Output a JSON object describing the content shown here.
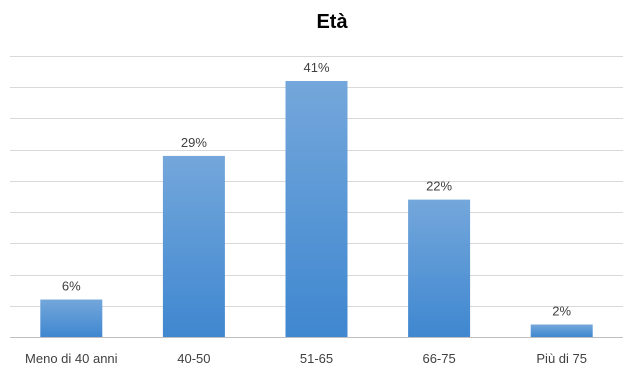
{
  "chart_data": {
    "type": "bar",
    "title": "Età",
    "categories": [
      "Meno di 40 anni",
      "40-50",
      "51-65",
      "66-75",
      "Più di 75"
    ],
    "values": [
      6,
      29,
      41,
      22,
      2
    ],
    "data_labels": [
      "6%",
      "29%",
      "41%",
      "22%",
      "2%"
    ],
    "value_unit": "%",
    "xlabel": "",
    "ylabel": "",
    "ylim": [
      0,
      45
    ],
    "gridlines": true,
    "y_axis_labels_shown": false,
    "legend": "none",
    "colors": {
      "bar_top": "#74a7db",
      "bar_bottom": "#3f87d0",
      "gridline": "#d9d9d9",
      "axis": "#bfbfbf",
      "text": "#404040",
      "title": "#000000"
    }
  }
}
